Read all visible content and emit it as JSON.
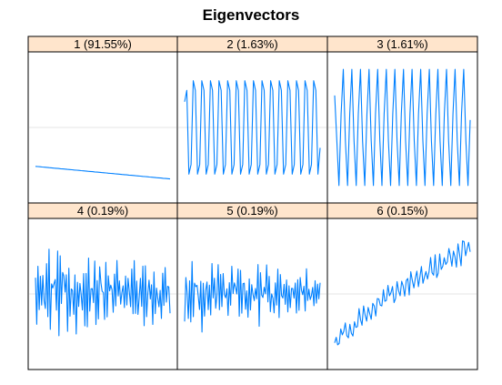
{
  "chart_data": {
    "type": "line",
    "title": "Eigenvectors",
    "layout": "2 rows x 3 columns, shared y-axis",
    "grid": true,
    "colors": {
      "line": "#0080ff",
      "strip_fill": "#ffe5cc",
      "panel_border": "#000000",
      "gridline": "#e6e6e6",
      "title": "#000000"
    },
    "panels": [
      {
        "label": "1 (91.55%)",
        "shape": "linear",
        "period": 0,
        "amp": 0,
        "level": -0.62,
        "slope": -0.2,
        "noise": 0,
        "samples": 60,
        "x_range": [
          1,
          60
        ],
        "ylim": [
          -1,
          1
        ]
      },
      {
        "label": "2 (1.63%)",
        "shape": "sine",
        "period": 4.0,
        "amp": 0.95,
        "level": 0,
        "slope": 0,
        "noise": 0,
        "samples": 64,
        "x_range": [
          1,
          64
        ],
        "ylim": [
          -1,
          1
        ]
      },
      {
        "label": "3 (1.61%)",
        "shape": "sine",
        "period": 4.0,
        "amp": 0.95,
        "level": 0,
        "slope": 0,
        "noise": 0,
        "samples": 64,
        "x_range": [
          1,
          64
        ],
        "ylim": [
          -1,
          1
        ]
      },
      {
        "label": "4 (0.19%)",
        "shape": "noisy",
        "period": 2.3,
        "amp": 0.45,
        "level": 0,
        "slope": 0,
        "noise": 0.28,
        "samples": 110,
        "x_range": [
          1,
          110
        ],
        "ylim": [
          -1,
          1
        ]
      },
      {
        "label": "5 (0.19%)",
        "shape": "noisy",
        "period": 2.3,
        "amp": 0.4,
        "level": 0,
        "slope": 0,
        "noise": 0.25,
        "samples": 110,
        "x_range": [
          1,
          110
        ],
        "ylim": [
          -1,
          1
        ]
      },
      {
        "label": "6 (0.15%)",
        "shape": "trend",
        "period": 3.1,
        "amp": 0.12,
        "level": -0.8,
        "slope": 1.55,
        "noise": 0.1,
        "samples": 90,
        "x_range": [
          1,
          90
        ],
        "ylim": [
          -1,
          1
        ]
      }
    ]
  }
}
